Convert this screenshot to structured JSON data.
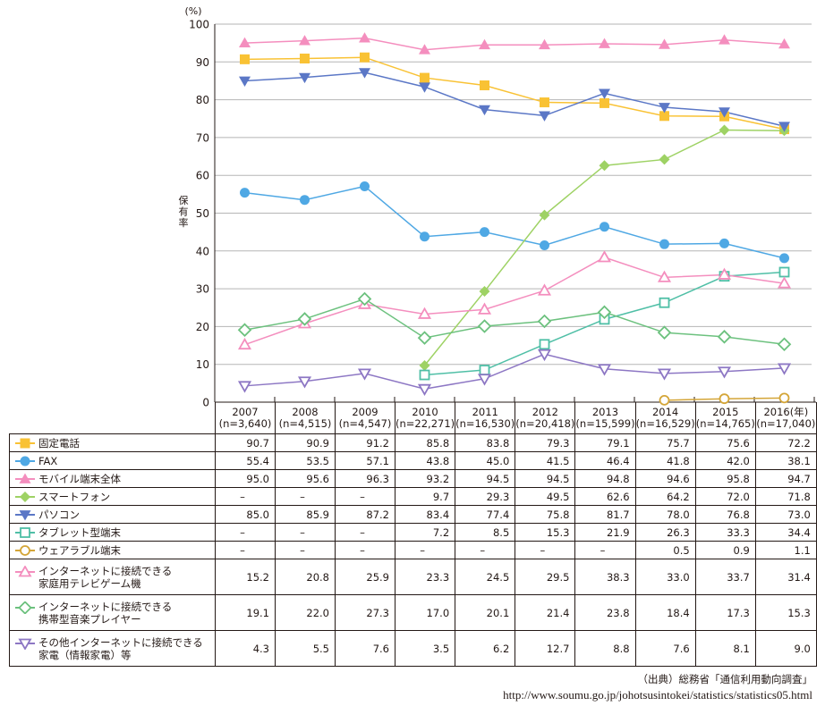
{
  "chart_data": {
    "type": "line",
    "title": "",
    "unit_label": "(%)",
    "ylabel": "保有率",
    "xlabel_suffix": "(年)",
    "ylim": [
      0,
      100
    ],
    "yticks": [
      0,
      10,
      20,
      30,
      40,
      50,
      60,
      70,
      80,
      90,
      100
    ],
    "grid": true,
    "categories": [
      "2007",
      "2008",
      "2009",
      "2010",
      "2011",
      "2012",
      "2013",
      "2014",
      "2015",
      "2016"
    ],
    "sample_sizes": [
      "(n=3,640)",
      "(n=4,515)",
      "(n=4,547)",
      "(n=22,271)",
      "(n=16,530)",
      "(n=20,418)",
      "(n=15,599)",
      "(n=16,529)",
      "(n=14,765)",
      "(n=17,040)"
    ],
    "legend_placement": "table-left",
    "series": [
      {
        "name": "固定電話",
        "name_lines": [
          "固定電話"
        ],
        "marker": "square-filled",
        "color": "#F9C234",
        "values": [
          90.7,
          90.9,
          91.2,
          85.8,
          83.8,
          79.3,
          79.1,
          75.7,
          75.6,
          72.2
        ]
      },
      {
        "name": "FAX",
        "name_lines": [
          "FAX"
        ],
        "marker": "circle-filled",
        "color": "#4FA8E4",
        "values": [
          55.4,
          53.5,
          57.1,
          43.8,
          45.0,
          41.5,
          46.4,
          41.8,
          42.0,
          38.1
        ]
      },
      {
        "name": "モバイル端末全体",
        "name_lines": [
          "モバイル端末全体"
        ],
        "marker": "triangle-up-filled",
        "color": "#F48EBE",
        "values": [
          95.0,
          95.6,
          96.3,
          93.2,
          94.5,
          94.5,
          94.8,
          94.6,
          95.8,
          94.7
        ]
      },
      {
        "name": "スマートフォン",
        "name_lines": [
          "スマートフォン"
        ],
        "marker": "diamond-filled",
        "color": "#9ED264",
        "values": [
          null,
          null,
          null,
          9.7,
          29.3,
          49.5,
          62.6,
          64.2,
          72.0,
          71.8
        ]
      },
      {
        "name": "パソコン",
        "name_lines": [
          "パソコン"
        ],
        "marker": "triangle-down-filled",
        "color": "#5B77C6",
        "values": [
          85.0,
          85.9,
          87.2,
          83.4,
          77.4,
          75.8,
          81.7,
          78.0,
          76.8,
          73.0
        ]
      },
      {
        "name": "タブレット型端末",
        "name_lines": [
          "タブレット型端末"
        ],
        "marker": "square-open",
        "color": "#4FBFA6",
        "values": [
          null,
          null,
          null,
          7.2,
          8.5,
          15.3,
          21.9,
          26.3,
          33.3,
          34.4
        ]
      },
      {
        "name": "ウェアラブル端末",
        "name_lines": [
          "ウェアラブル端末"
        ],
        "marker": "circle-open",
        "color": "#D4A537",
        "values": [
          null,
          null,
          null,
          null,
          null,
          null,
          null,
          0.5,
          0.9,
          1.1
        ]
      },
      {
        "name": "インターネットに接続できる家庭用テレビゲーム機",
        "name_lines": [
          "インターネットに接続できる",
          "家庭用テレビゲーム機"
        ],
        "marker": "triangle-up-open",
        "color": "#F48EBE",
        "values": [
          15.2,
          20.8,
          25.9,
          23.3,
          24.5,
          29.5,
          38.3,
          33.0,
          33.7,
          31.4
        ]
      },
      {
        "name": "インターネットに接続できる携帯型音楽プレイヤー",
        "name_lines": [
          "インターネットに接続できる",
          "携帯型音楽プレイヤー"
        ],
        "marker": "diamond-open",
        "color": "#6CC17E",
        "values": [
          19.1,
          22.0,
          27.3,
          17.0,
          20.1,
          21.4,
          23.8,
          18.4,
          17.3,
          15.3
        ]
      },
      {
        "name": "その他インターネットに接続できる家電（情報家電）等",
        "name_lines": [
          "その他インターネットに接続できる",
          "家電（情報家電）等"
        ],
        "marker": "triangle-down-open",
        "color": "#8D77C4",
        "values": [
          4.3,
          5.5,
          7.6,
          3.5,
          6.2,
          12.7,
          8.8,
          7.6,
          8.1,
          9.0
        ]
      }
    ],
    "table_values": [
      [
        "90.7",
        "90.9",
        "91.2",
        "85.8",
        "83.8",
        "79.3",
        "79.1",
        "75.7",
        "75.6",
        "72.2"
      ],
      [
        "55.4",
        "53.5",
        "57.1",
        "43.8",
        "45.0",
        "41.5",
        "46.4",
        "41.8",
        "42.0",
        "38.1"
      ],
      [
        "95.0",
        "95.6",
        "96.3",
        "93.2",
        "94.5",
        "94.5",
        "94.8",
        "94.6",
        "95.8",
        "94.7"
      ],
      [
        "–",
        "–",
        "–",
        "9.7",
        "29.3",
        "49.5",
        "62.6",
        "64.2",
        "72.0",
        "71.8"
      ],
      [
        "85.0",
        "85.9",
        "87.2",
        "83.4",
        "77.4",
        "75.8",
        "81.7",
        "78.0",
        "76.8",
        "73.0"
      ],
      [
        "–",
        "–",
        "–",
        "7.2",
        "8.5",
        "15.3",
        "21.9",
        "26.3",
        "33.3",
        "34.4"
      ],
      [
        "–",
        "–",
        "–",
        "–",
        "–",
        "–",
        "–",
        "0.5",
        "0.9",
        "1.1"
      ],
      [
        "15.2",
        "20.8",
        "25.9",
        "23.3",
        "24.5",
        "29.5",
        "38.3",
        "33.0",
        "33.7",
        "31.4"
      ],
      [
        "19.1",
        "22.0",
        "27.3",
        "17.0",
        "20.1",
        "21.4",
        "23.8",
        "18.4",
        "17.3",
        "15.3"
      ],
      [
        "4.3",
        "5.5",
        "7.6",
        "3.5",
        "6.2",
        "12.7",
        "8.8",
        "7.6",
        "8.1",
        "9.0"
      ]
    ]
  },
  "source": {
    "citation": "（出典）総務省「通信利用動向調査」",
    "url": "http://www.soumu.go.jp/johotsusintokei/statistics/statistics05.html"
  }
}
